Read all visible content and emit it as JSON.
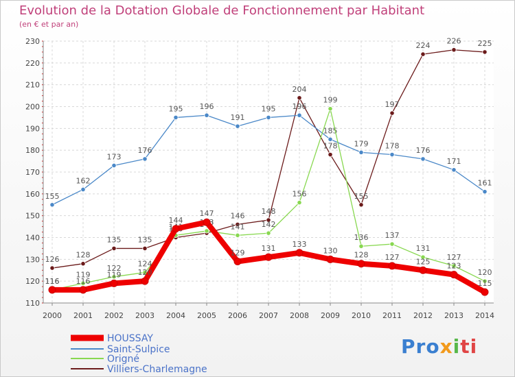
{
  "chart_data": {
    "type": "line",
    "title": "Evolution de la Dotation Globale de Fonctionnement par Habitant",
    "subtitle": "(en € et par an)",
    "xlabel": "",
    "ylabel": "",
    "ylim": [
      110,
      230
    ],
    "yticks": [
      110,
      120,
      130,
      140,
      150,
      160,
      170,
      180,
      190,
      200,
      210,
      220,
      230
    ],
    "grid": true,
    "legend_position": "bottom-left",
    "categories": [
      "2000",
      "2001",
      "2002",
      "2003",
      "2004",
      "2005",
      "2006",
      "2007",
      "2008",
      "2009",
      "2010",
      "2011",
      "2012",
      "2013",
      "2014"
    ],
    "series": [
      {
        "name": "Villiers-Charlemagne",
        "color": "#6b1a1a",
        "values": [
          126,
          128,
          135,
          135,
          140,
          142,
          146,
          148,
          204,
          178,
          155,
          197,
          224,
          226,
          225
        ],
        "labels": [
          "126",
          "128",
          "135",
          "135",
          "140",
          "142",
          "146",
          "148",
          "204",
          "178",
          "155",
          "197",
          "224",
          "226",
          "225"
        ]
      },
      {
        "name": "Saint-Sulpice",
        "color": "#4a88c8",
        "values": [
          155,
          162,
          173,
          176,
          195,
          196,
          191,
          195,
          196,
          185,
          179,
          178,
          176,
          171,
          161
        ],
        "labels": [
          "155",
          "162",
          "173",
          "176",
          "195",
          "196",
          "191",
          "195",
          "196",
          "185",
          "179",
          "178",
          "176",
          "171",
          "161"
        ]
      },
      {
        "name": "Origné",
        "color": "#88d850",
        "values": [
          116,
          119,
          122,
          124,
          141,
          143,
          141,
          142,
          156,
          199,
          136,
          137,
          131,
          127,
          120
        ],
        "labels": [
          "116",
          "119",
          "122",
          "124",
          "141",
          "143",
          "141",
          "142",
          "156",
          "199",
          "136",
          "137",
          "131",
          "127",
          "120"
        ]
      },
      {
        "name": "HOUSSAY",
        "color": "#ee0000",
        "values": [
          116,
          116,
          119,
          120,
          144,
          147,
          129,
          131,
          133,
          130,
          128,
          127,
          125,
          123,
          115
        ],
        "labels": [
          "116",
          "116",
          "119",
          "120",
          "144",
          "147",
          "129",
          "131",
          "133",
          "130",
          "128",
          "127",
          "125",
          "123",
          "115"
        ]
      }
    ],
    "legend": [
      {
        "name": "HOUSSAY",
        "color": "#ee0000"
      },
      {
        "name": "Saint-Sulpice",
        "color": "#4a88c8"
      },
      {
        "name": "Origné",
        "color": "#88d850"
      },
      {
        "name": "Villiers-Charlemagne",
        "color": "#6b1a1a"
      }
    ]
  },
  "logo": {
    "p1": "Pro",
    "p2": "x",
    "p3": "i",
    "p4": "ti"
  }
}
